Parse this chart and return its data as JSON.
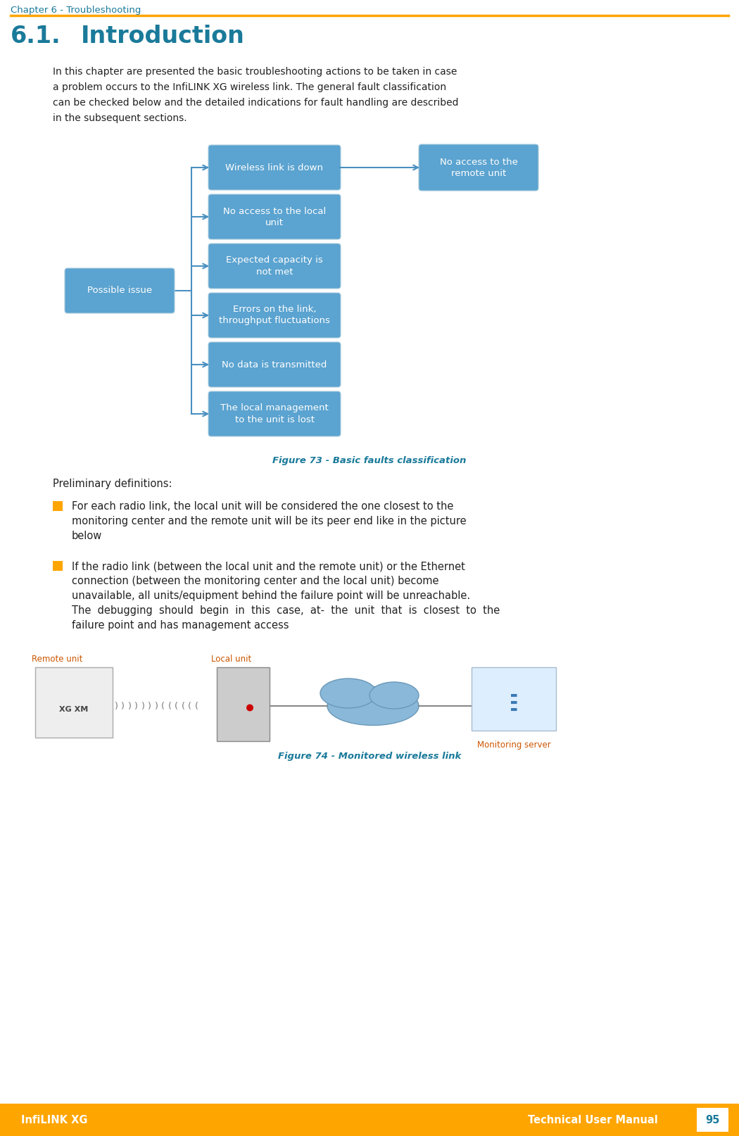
{
  "page_width": 10.5,
  "page_height": 16.14,
  "dpi": 100,
  "bg_color": "#ffffff",
  "header_text": "Chapter 6 - Troubleshooting",
  "header_color": "#1a7a9a",
  "header_line_color": "#FFA500",
  "title_section": "6.1.",
  "title_text": "Introduction",
  "title_color": "#1a7a9a",
  "body_lines": [
    "In this chapter are presented the basic troubleshooting actions to be taken in case",
    "a problem occurs to the InfiLINK XG wireless link. The general fault classification",
    "can be checked below and the detailed indications for fault handling are described",
    "in the subsequent sections."
  ],
  "node_fill": "#5ba3d0",
  "node_edge": "#4a90c0",
  "node_text_color": "#ffffff",
  "arrow_color": "#4a90c0",
  "right_boxes": [
    "Wireless link is down",
    "No access to the local\nunit",
    "Expected capacity is\nnot met",
    "Errors on the link,\nthroughput fluctuations",
    "No data is transmitted",
    "The local management\nto the unit is lost"
  ],
  "possible_issue_label": "Possible issue",
  "remote_box_label": "No access to the\nremote unit",
  "fig73_caption": "Figure 73 - Basic faults classification",
  "prelim_text": "Preliminary definitions:",
  "bullet1_lines": [
    "For each radio link, the local unit will be considered the one closest to the",
    "monitoring center and the remote unit will be its peer end like in the picture",
    "below"
  ],
  "bullet2_lines": [
    "If the radio link (between the local unit and the remote unit) or the Ethernet",
    "connection (between the monitoring center and the local unit) become",
    "unavailable, all units/equipment behind the failure point will be unreachable.",
    "The  debugging  should  begin  in  this  case,  at-  the  unit  that  is  closest  to  the",
    "failure point and has management access"
  ],
  "fig74_label_remote": "Remote unit",
  "fig74_label_local": "Local unit",
  "fig74_label_server": "Monitoring server",
  "fig74_caption": "Figure 74 - Monitored wireless link",
  "footer_bg": "#FFA500",
  "footer_left": "InfiLINK XG",
  "footer_right": "Technical User Manual",
  "footer_page": "95",
  "footer_text_color": "#ffffff",
  "footer_page_color": "#1a7a9a"
}
